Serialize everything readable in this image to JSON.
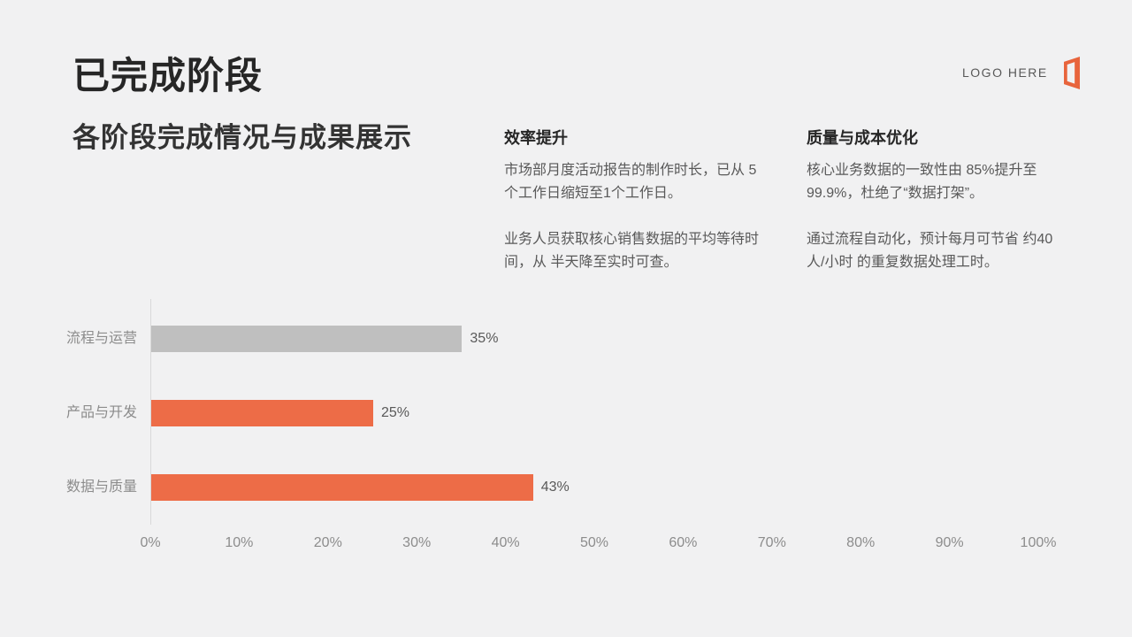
{
  "slide": {
    "title": "已完成阶段",
    "subtitle": "各阶段完成情况与成果展示",
    "logo": {
      "text": "LOGO HERE",
      "icon": "office-logo-icon",
      "icon_color": "#e8643c"
    }
  },
  "highlights": [
    {
      "heading": "效率提升",
      "paragraphs": [
        "市场部月度活动报告的制作时长，已从 5个工作日缩短至1个工作日。",
        "业务人员获取核心销售数据的平均等待时间，从 半天降至实时可查。"
      ]
    },
    {
      "heading": "质量与成本优化",
      "paragraphs": [
        "核心业务数据的一致性由 85%提升至 99.9%，杜绝了“数据打架”。",
        "通过流程自动化，预计每月可节省 约40 人/小时 的重复数据处理工时。"
      ]
    }
  ],
  "chart_data": {
    "type": "bar",
    "orientation": "horizontal",
    "title": "",
    "xlabel": "",
    "ylabel": "",
    "categories": [
      "流程与运营",
      "产品与开发",
      "数据与质量"
    ],
    "values": [
      35,
      25,
      43
    ],
    "value_labels": [
      "35%",
      "25%",
      "43%"
    ],
    "bar_colors": [
      "#bfbfbf",
      "#ed6c47",
      "#ed6c47"
    ],
    "xlim": [
      0,
      100
    ],
    "x_ticks": [
      "0%",
      "10%",
      "20%",
      "30%",
      "40%",
      "50%",
      "60%",
      "70%",
      "80%",
      "90%",
      "100%"
    ],
    "grid": false,
    "legend": "none"
  },
  "colors": {
    "background": "#f1f1f2",
    "title": "#262626",
    "body_text": "#595959",
    "muted_label": "#8c8c8c",
    "accent_orange": "#ed6c47",
    "neutral_bar": "#bfbfbf",
    "axis_line": "#d9d9d9"
  }
}
